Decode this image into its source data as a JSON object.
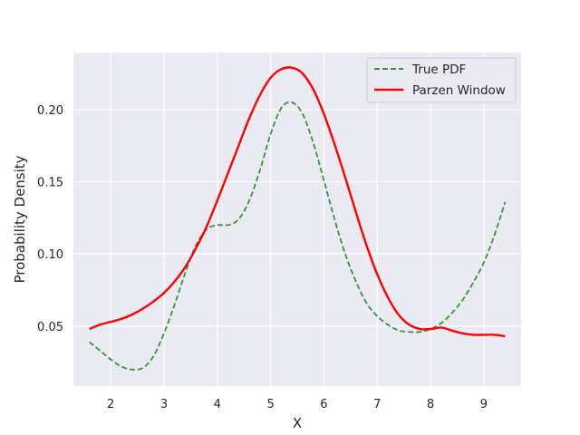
{
  "chart_data": {
    "type": "line",
    "title": "",
    "xlabel": "X",
    "ylabel": "Probability Density",
    "xlim": [
      1.3,
      9.7
    ],
    "ylim": [
      0.0085,
      0.2395
    ],
    "xticks": [
      2,
      3,
      4,
      5,
      6,
      7,
      8,
      9
    ],
    "xtick_labels": [
      "2",
      "3",
      "4",
      "5",
      "6",
      "7",
      "8",
      "9"
    ],
    "yticks": [
      0.05,
      0.1,
      0.15,
      0.2
    ],
    "ytick_labels": [
      "0.05",
      "0.10",
      "0.15",
      "0.20"
    ],
    "grid": true,
    "legend_position": "top-right",
    "background": "#eaeaf2",
    "series": [
      {
        "name": "True PDF",
        "color": "#3a923a",
        "style": "dashed",
        "x": [
          1.6,
          1.8,
          2.0,
          2.2,
          2.4,
          2.6,
          2.8,
          3.0,
          3.2,
          3.4,
          3.6,
          3.8,
          4.0,
          4.2,
          4.4,
          4.6,
          4.8,
          5.0,
          5.2,
          5.4,
          5.6,
          5.8,
          6.0,
          6.2,
          6.4,
          6.6,
          6.8,
          7.0,
          7.2,
          7.4,
          7.6,
          7.8,
          8.0,
          8.2,
          8.4,
          8.6,
          8.8,
          9.0,
          9.2,
          9.4
        ],
        "y": [
          0.039,
          0.033,
          0.027,
          0.022,
          0.02,
          0.021,
          0.029,
          0.045,
          0.065,
          0.087,
          0.106,
          0.117,
          0.12,
          0.12,
          0.124,
          0.137,
          0.158,
          0.183,
          0.201,
          0.205,
          0.197,
          0.177,
          0.151,
          0.124,
          0.1,
          0.081,
          0.066,
          0.057,
          0.051,
          0.047,
          0.046,
          0.046,
          0.048,
          0.052,
          0.059,
          0.068,
          0.08,
          0.094,
          0.113,
          0.136
        ]
      },
      {
        "name": "Parzen Window",
        "color": "#ff0000",
        "style": "solid",
        "x": [
          1.6,
          1.8,
          2.0,
          2.2,
          2.4,
          2.6,
          2.8,
          3.0,
          3.2,
          3.4,
          3.6,
          3.8,
          4.0,
          4.2,
          4.4,
          4.6,
          4.8,
          5.0,
          5.2,
          5.4,
          5.6,
          5.8,
          6.0,
          6.2,
          6.4,
          6.6,
          6.8,
          7.0,
          7.2,
          7.4,
          7.6,
          7.8,
          8.0,
          8.2,
          8.4,
          8.6,
          8.8,
          9.0,
          9.2,
          9.4
        ],
        "y": [
          0.048,
          0.051,
          0.053,
          0.055,
          0.058,
          0.062,
          0.067,
          0.073,
          0.081,
          0.091,
          0.104,
          0.119,
          0.137,
          0.156,
          0.175,
          0.194,
          0.21,
          0.222,
          0.228,
          0.229,
          0.225,
          0.214,
          0.197,
          0.176,
          0.153,
          0.129,
          0.106,
          0.086,
          0.07,
          0.058,
          0.051,
          0.048,
          0.048,
          0.049,
          0.047,
          0.045,
          0.044,
          0.044,
          0.044,
          0.043
        ]
      }
    ]
  }
}
